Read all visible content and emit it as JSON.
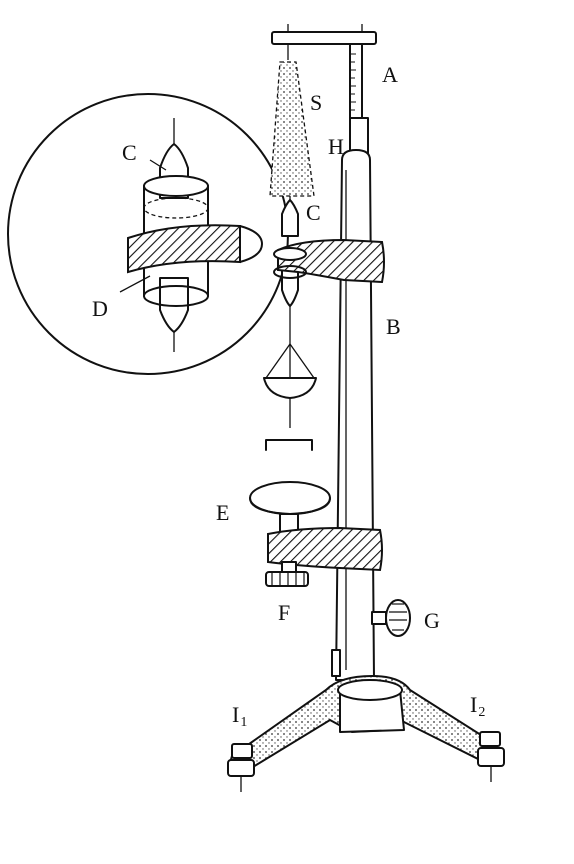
{
  "labels": {
    "A": "A",
    "S": "S",
    "H": "H",
    "C_main": "C",
    "C_inset": "C",
    "D": "D",
    "B": "B",
    "E": "E",
    "F": "F",
    "G": "G",
    "I1": "I",
    "I1_sub": "1",
    "I2": "I",
    "I2_sub": "2"
  },
  "colors": {
    "ink": "#111111",
    "background": "#ffffff"
  }
}
